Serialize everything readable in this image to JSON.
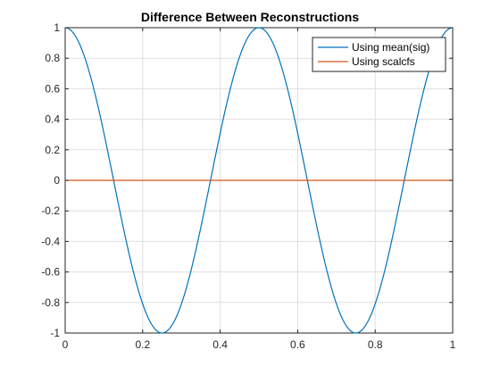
{
  "chart_data": {
    "type": "line",
    "title": "Difference Between Reconstructions",
    "xlabel": "",
    "ylabel": "",
    "xlim": [
      0,
      1
    ],
    "ylim": [
      -1,
      1
    ],
    "xticks": [
      0,
      0.2,
      0.4,
      0.6,
      0.8,
      1
    ],
    "xtick_labels": [
      "0",
      "0.2",
      "0.4",
      "0.6",
      "0.8",
      "1"
    ],
    "yticks": [
      -1,
      -0.8,
      -0.6,
      -0.4,
      -0.2,
      0,
      0.2,
      0.4,
      0.6,
      0.8,
      1
    ],
    "ytick_labels": [
      "-1",
      "-0.8",
      "-0.6",
      "-0.4",
      "-0.2",
      "0",
      "0.2",
      "0.4",
      "0.6",
      "0.8",
      "1"
    ],
    "grid": true,
    "legend_position": "top-right",
    "series": [
      {
        "name": "Using mean(sig)",
        "color": "#0072BD",
        "function": "cos(4*pi*x)",
        "x_range": [
          0,
          1
        ]
      },
      {
        "name": "Using scalcfs",
        "color": "#D95319",
        "function": "0",
        "x_range": [
          0,
          1
        ]
      }
    ]
  }
}
